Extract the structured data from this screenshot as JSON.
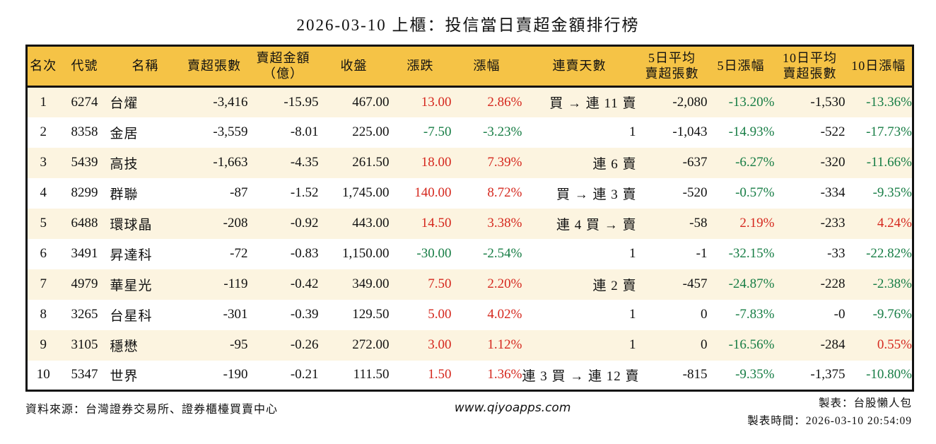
{
  "title": "2026-03-10 上櫃：投信當日賣超金額排行榜",
  "colors": {
    "header_bg": "#F5C346",
    "row_alt_bg": "#FCF4E0",
    "up_red": "#D5281E",
    "down_green": "#177D45",
    "border": "#111111"
  },
  "table": {
    "columns": [
      {
        "id": "rank",
        "lines": [
          "名次"
        ],
        "align": "center",
        "width": 46
      },
      {
        "id": "code",
        "lines": [
          "代號"
        ],
        "align": "center",
        "width": 72
      },
      {
        "id": "name",
        "lines": [
          "名稱"
        ],
        "align": "left",
        "width": 100
      },
      {
        "id": "net-sell-shares",
        "lines": [
          "賣超張數"
        ],
        "align": "right",
        "width": 95
      },
      {
        "id": "net-sell-amount",
        "lines": [
          "賣超金額",
          "（億）"
        ],
        "align": "right",
        "width": 100
      },
      {
        "id": "close",
        "lines": [
          "收盤"
        ],
        "align": "right",
        "width": 100
      },
      {
        "id": "change",
        "lines": [
          "漲跌"
        ],
        "align": "right",
        "width": 88
      },
      {
        "id": "change-pct",
        "lines": [
          "漲幅"
        ],
        "align": "right",
        "width": 100
      },
      {
        "id": "streak",
        "lines": [
          "連賣天數"
        ],
        "align": "right",
        "width": 162
      },
      {
        "id": "avg5-shares",
        "lines": [
          "5日平均",
          "賣超張數"
        ],
        "align": "right",
        "width": 100
      },
      {
        "id": "pct5",
        "lines": [
          "5日漲幅"
        ],
        "align": "right",
        "width": 95
      },
      {
        "id": "avg10-shares",
        "lines": [
          "10日平均",
          "賣超張數"
        ],
        "align": "right",
        "width": 100
      },
      {
        "id": "pct10",
        "lines": [
          "10日漲幅"
        ],
        "align": "right",
        "width": 96
      }
    ],
    "rows": [
      {
        "cells": [
          {
            "v": "1"
          },
          {
            "v": "6274"
          },
          {
            "v": "台燿"
          },
          {
            "v": "-3,416"
          },
          {
            "v": "-15.95"
          },
          {
            "v": "467.00"
          },
          {
            "v": "13.00",
            "c": "red"
          },
          {
            "v": "2.86%",
            "c": "red"
          },
          {
            "v": "買 → 連 11 賣"
          },
          {
            "v": "-2,080"
          },
          {
            "v": "-13.20%",
            "c": "green"
          },
          {
            "v": "-1,530"
          },
          {
            "v": "-13.36%",
            "c": "green"
          }
        ]
      },
      {
        "cells": [
          {
            "v": "2"
          },
          {
            "v": "8358"
          },
          {
            "v": "金居"
          },
          {
            "v": "-3,559"
          },
          {
            "v": "-8.01"
          },
          {
            "v": "225.00"
          },
          {
            "v": "-7.50",
            "c": "green"
          },
          {
            "v": "-3.23%",
            "c": "green"
          },
          {
            "v": "1"
          },
          {
            "v": "-1,043"
          },
          {
            "v": "-14.93%",
            "c": "green"
          },
          {
            "v": "-522"
          },
          {
            "v": "-17.73%",
            "c": "green"
          }
        ]
      },
      {
        "cells": [
          {
            "v": "3"
          },
          {
            "v": "5439"
          },
          {
            "v": "高技"
          },
          {
            "v": "-1,663"
          },
          {
            "v": "-4.35"
          },
          {
            "v": "261.50"
          },
          {
            "v": "18.00",
            "c": "red"
          },
          {
            "v": "7.39%",
            "c": "red"
          },
          {
            "v": "連 6 賣"
          },
          {
            "v": "-637"
          },
          {
            "v": "-6.27%",
            "c": "green"
          },
          {
            "v": "-320"
          },
          {
            "v": "-11.66%",
            "c": "green"
          }
        ]
      },
      {
        "cells": [
          {
            "v": "4"
          },
          {
            "v": "8299"
          },
          {
            "v": "群聯"
          },
          {
            "v": "-87"
          },
          {
            "v": "-1.52"
          },
          {
            "v": "1,745.00"
          },
          {
            "v": "140.00",
            "c": "red"
          },
          {
            "v": "8.72%",
            "c": "red"
          },
          {
            "v": "買 → 連 3 賣"
          },
          {
            "v": "-520"
          },
          {
            "v": "-0.57%",
            "c": "green"
          },
          {
            "v": "-334"
          },
          {
            "v": "-9.35%",
            "c": "green"
          }
        ]
      },
      {
        "cells": [
          {
            "v": "5"
          },
          {
            "v": "6488"
          },
          {
            "v": "環球晶"
          },
          {
            "v": "-208"
          },
          {
            "v": "-0.92"
          },
          {
            "v": "443.00"
          },
          {
            "v": "14.50",
            "c": "red"
          },
          {
            "v": "3.38%",
            "c": "red"
          },
          {
            "v": "連 4 買 → 賣"
          },
          {
            "v": "-58"
          },
          {
            "v": "2.19%",
            "c": "red"
          },
          {
            "v": "-233"
          },
          {
            "v": "4.24%",
            "c": "red"
          }
        ]
      },
      {
        "cells": [
          {
            "v": "6"
          },
          {
            "v": "3491"
          },
          {
            "v": "昇達科"
          },
          {
            "v": "-72"
          },
          {
            "v": "-0.83"
          },
          {
            "v": "1,150.00"
          },
          {
            "v": "-30.00",
            "c": "green"
          },
          {
            "v": "-2.54%",
            "c": "green"
          },
          {
            "v": "1"
          },
          {
            "v": "-1"
          },
          {
            "v": "-32.15%",
            "c": "green"
          },
          {
            "v": "-33"
          },
          {
            "v": "-22.82%",
            "c": "green"
          }
        ]
      },
      {
        "cells": [
          {
            "v": "7"
          },
          {
            "v": "4979"
          },
          {
            "v": "華星光"
          },
          {
            "v": "-119"
          },
          {
            "v": "-0.42"
          },
          {
            "v": "349.00"
          },
          {
            "v": "7.50",
            "c": "red"
          },
          {
            "v": "2.20%",
            "c": "red"
          },
          {
            "v": "連 2 賣"
          },
          {
            "v": "-457"
          },
          {
            "v": "-24.87%",
            "c": "green"
          },
          {
            "v": "-228"
          },
          {
            "v": "-2.38%",
            "c": "green"
          }
        ]
      },
      {
        "cells": [
          {
            "v": "8"
          },
          {
            "v": "3265"
          },
          {
            "v": "台星科"
          },
          {
            "v": "-301"
          },
          {
            "v": "-0.39"
          },
          {
            "v": "129.50"
          },
          {
            "v": "5.00",
            "c": "red"
          },
          {
            "v": "4.02%",
            "c": "red"
          },
          {
            "v": "1"
          },
          {
            "v": "0"
          },
          {
            "v": "-7.83%",
            "c": "green"
          },
          {
            "v": "-0"
          },
          {
            "v": "-9.76%",
            "c": "green"
          }
        ]
      },
      {
        "cells": [
          {
            "v": "9"
          },
          {
            "v": "3105"
          },
          {
            "v": "穩懋"
          },
          {
            "v": "-95"
          },
          {
            "v": "-0.26"
          },
          {
            "v": "272.00"
          },
          {
            "v": "3.00",
            "c": "red"
          },
          {
            "v": "1.12%",
            "c": "red"
          },
          {
            "v": "1"
          },
          {
            "v": "0"
          },
          {
            "v": "-16.56%",
            "c": "green"
          },
          {
            "v": "-284"
          },
          {
            "v": "0.55%",
            "c": "red"
          }
        ]
      },
      {
        "cells": [
          {
            "v": "10"
          },
          {
            "v": "5347"
          },
          {
            "v": "世界"
          },
          {
            "v": "-190"
          },
          {
            "v": "-0.21"
          },
          {
            "v": "111.50"
          },
          {
            "v": "1.50",
            "c": "red"
          },
          {
            "v": "1.36%",
            "c": "red"
          },
          {
            "v": "連 3 買 → 連 12 賣"
          },
          {
            "v": "-815"
          },
          {
            "v": "-9.35%",
            "c": "green"
          },
          {
            "v": "-1,375"
          },
          {
            "v": "-10.80%",
            "c": "green"
          }
        ]
      }
    ]
  },
  "footer": {
    "source": "資料來源：台灣證券交易所、證券櫃檯買賣中心",
    "website": "www.qiyoapps.com",
    "author": "製表：台股懶人包",
    "generated": "製表時間：2026-03-10 20:54:09"
  }
}
